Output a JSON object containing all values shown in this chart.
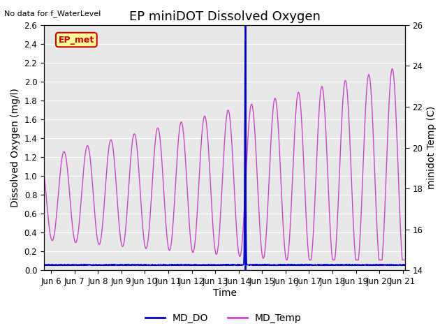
{
  "title": "EP miniDOT Dissolved Oxygen",
  "top_left_text": "No data for f_WaterLevel",
  "xlabel": "Time",
  "ylabel_left": "Dissolved Oxygen (mg/l)",
  "ylabel_right": "minidot Temp (C)",
  "ylim_left": [
    0.0,
    2.6
  ],
  "ylim_right": [
    14,
    26
  ],
  "yticks_left": [
    0.0,
    0.2,
    0.4,
    0.6,
    0.8,
    1.0,
    1.2,
    1.4,
    1.6,
    1.8,
    2.0,
    2.2,
    2.4,
    2.6
  ],
  "yticks_right": [
    14,
    16,
    18,
    20,
    22,
    24,
    26
  ],
  "x_start_day": 5.7,
  "x_end_day": 21.1,
  "xtick_labels": [
    "Jun 6",
    "Jun 7",
    "Jun 8",
    "Jun 9",
    "Jun 10",
    "Jun 11",
    "Jun 12",
    "Jun 13",
    "Jun 14",
    "Jun 15",
    "Jun 16",
    "Jun 17",
    "Jun 18",
    "Jun 19",
    "Jun 20",
    "Jun 21"
  ],
  "xtick_positions": [
    6,
    7,
    8,
    9,
    10,
    11,
    12,
    13,
    14,
    15,
    16,
    17,
    18,
    19,
    20,
    21
  ],
  "ep_met_label": "EP_met",
  "ep_met_color": "#cc0000",
  "ep_met_bg": "#ffff99",
  "vertical_line_x": 14.28,
  "vertical_line_color": "#0000cc",
  "md_do_color": "#0000cc",
  "md_temp_color": "#cc44cc",
  "legend_labels": [
    "MD_DO",
    "MD_Temp"
  ],
  "background_color": "#e8e8e8",
  "grid_color": "white",
  "title_fontsize": 13,
  "axis_label_fontsize": 10,
  "tick_fontsize": 8.5,
  "temp_min": 14.0,
  "temp_max": 26.0,
  "do_min": 0.0,
  "do_max": 2.6
}
